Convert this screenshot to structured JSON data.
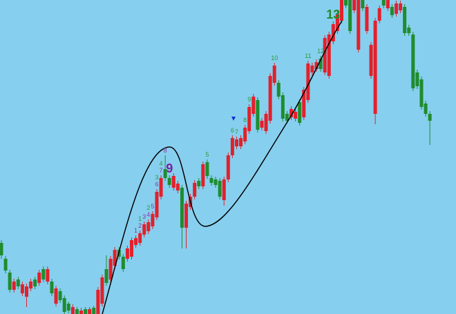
{
  "chart_data": {
    "type": "candlestick",
    "up_color": "#e3202b",
    "down_color": "#1f8c2e",
    "background": "#87cfee",
    "ylim": [
      0,
      455
    ],
    "open": [
      103,
      80,
      60,
      35,
      50,
      30,
      25,
      37,
      50,
      45,
      65,
      47,
      47,
      15,
      33,
      23,
      15,
      0,
      7,
      -7,
      7,
      -1,
      9,
      0,
      15,
      65,
      50,
      70,
      93,
      83,
      80,
      83,
      100,
      103,
      115,
      120,
      127,
      140,
      170,
      210,
      197,
      183,
      179,
      183,
      125,
      155,
      170,
      193,
      185,
      220,
      197,
      195,
      193,
      165,
      195,
      230,
      243,
      243,
      250,
      265,
      290,
      310,
      270,
      265,
      280,
      335,
      335,
      317,
      290,
      285,
      283,
      307,
      285,
      310,
      350,
      355,
      370,
      350,
      345,
      395,
      410,
      425,
      460,
      460,
      440,
      383,
      455,
      410,
      345,
      290,
      425,
      455,
      443,
      445,
      435,
      440,
      445,
      415,
      405,
      350,
      340,
      305,
      290
    ],
    "high": [
      107,
      84,
      64,
      51,
      54,
      47,
      44,
      51,
      54,
      64,
      69,
      69,
      51,
      41,
      37,
      27,
      18,
      14,
      10,
      9,
      10,
      10,
      12,
      39,
      57,
      85,
      84,
      97,
      97,
      87,
      99,
      111,
      114,
      121,
      134,
      137,
      149,
      181,
      201,
      230,
      201,
      204,
      193,
      187,
      164,
      174,
      194,
      197,
      221,
      224,
      201,
      199,
      197,
      199,
      234,
      259,
      257,
      259,
      274,
      304,
      319,
      314,
      284,
      294,
      349,
      364,
      339,
      321,
      294,
      301,
      297,
      311,
      329,
      367,
      364,
      369,
      374,
      404,
      409,
      424,
      439,
      464,
      464,
      464,
      459,
      464,
      459,
      449,
      394,
      429,
      447,
      459,
      464,
      449,
      454,
      454,
      449,
      419,
      409,
      354,
      344,
      309,
      294
    ],
    "low": [
      80,
      59,
      31,
      31,
      36,
      26,
      10,
      33,
      36,
      41,
      46,
      43,
      26,
      11,
      16,
      -1,
      1,
      -4,
      -9,
      -11,
      -7,
      -5,
      -5,
      -4,
      11,
      41,
      46,
      66,
      79,
      61,
      76,
      79,
      96,
      99,
      111,
      116,
      123,
      136,
      166,
      193,
      183,
      179,
      175,
      95,
      95,
      151,
      166,
      181,
      181,
      196,
      186,
      183,
      166,
      157,
      191,
      226,
      239,
      239,
      246,
      261,
      286,
      263,
      266,
      261,
      276,
      331,
      311,
      279,
      276,
      281,
      279,
      273,
      281,
      306,
      346,
      351,
      351,
      346,
      341,
      391,
      406,
      421,
      443,
      406,
      436,
      379,
      439,
      406,
      341,
      275,
      421,
      443,
      439,
      429,
      431,
      436,
      403,
      403,
      323,
      326,
      296,
      286,
      245
    ],
    "close": [
      85,
      63,
      35,
      47,
      40,
      43,
      40,
      47,
      40,
      60,
      50,
      65,
      30,
      37,
      20,
      3,
      5,
      10,
      -5,
      5,
      -3,
      7,
      -1,
      35,
      53,
      45,
      80,
      93,
      83,
      65,
      95,
      107,
      110,
      117,
      130,
      133,
      145,
      177,
      197,
      197,
      187,
      200,
      189,
      125,
      160,
      170,
      190,
      185,
      217,
      200,
      190,
      187,
      170,
      195,
      230,
      255,
      253,
      255,
      270,
      300,
      315,
      267,
      280,
      290,
      345,
      360,
      315,
      283,
      280,
      297,
      293,
      277,
      325,
      363,
      360,
      365,
      355,
      400,
      405,
      420,
      435,
      460,
      447,
      410,
      455,
      460,
      443,
      445,
      390,
      425,
      443,
      447,
      460,
      433,
      450,
      450,
      407,
      407,
      327,
      330,
      300,
      290,
      280
    ],
    "annotations": [
      {
        "text": "1",
        "index": 32,
        "color": "#8a35a8"
      },
      {
        "text": "2",
        "index": 33,
        "color": "#8a35a8"
      },
      {
        "text": "1",
        "index": 33,
        "color": "#2a9a3a"
      },
      {
        "text": "3",
        "index": 34,
        "color": "#8a35a8"
      },
      {
        "text": "4",
        "index": 35,
        "color": "#8a35a8"
      },
      {
        "text": "2",
        "index": 35,
        "color": "#2a9a3a"
      },
      {
        "text": "5",
        "index": 36,
        "color": "#8a35a8"
      },
      {
        "text": "6",
        "index": 37,
        "color": "#8a35a8"
      },
      {
        "text": "3",
        "index": 37,
        "color": "#2a9a3a"
      },
      {
        "text": "7",
        "index": 38,
        "color": "#8a35a8"
      },
      {
        "text": "4",
        "index": 38,
        "color": "#2a9a3a"
      },
      {
        "text": "8",
        "index": 39,
        "color": "#8a35a8"
      },
      {
        "text": "9",
        "index": 40,
        "color": "#7a1fa0",
        "big": true
      },
      {
        "text": "5",
        "index": 49,
        "color": "#2a9a3a"
      },
      {
        "text": "6",
        "index": 55,
        "color": "#2a9a3a"
      },
      {
        "text": "7",
        "index": 56,
        "color": "#2a9a3a"
      },
      {
        "text": "8",
        "index": 58,
        "color": "#2a9a3a"
      },
      {
        "text": "9",
        "index": 59,
        "color": "#2a9a3a"
      },
      {
        "text": "10",
        "index": 65,
        "color": "#2a9a3a"
      },
      {
        "text": "11",
        "index": 73,
        "color": "#2a9a3a"
      },
      {
        "text": "12",
        "index": 76,
        "color": "#2a9a3a"
      },
      {
        "text": "13",
        "index": 79,
        "color": "#1f8c2e",
        "big": true
      }
    ]
  }
}
